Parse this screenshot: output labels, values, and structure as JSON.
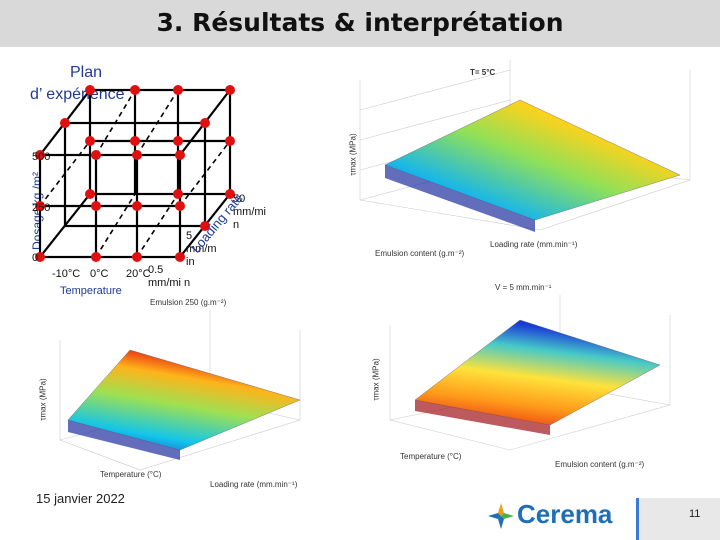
{
  "slide": {
    "title": "3. Résultats & interprétation",
    "date": "15 janvier 2022",
    "page_number": "11",
    "logo_text": "Cerema"
  },
  "design": {
    "title_line1": "Plan",
    "title_line2": "d’ expérience",
    "axis_dosage": "Dosage kg /m²",
    "dosage_ticks": [
      "500",
      "250",
      "0"
    ],
    "temp_ticks": [
      "-10°C",
      "0°C",
      "20°C"
    ],
    "temp_label": "Temperature",
    "loading_ticks": [
      "0.5 mm/mi n",
      "5 mm/m in",
      "50 mm/mi n"
    ],
    "loading_label": "Loading rate"
  },
  "plots": {
    "top_right": {
      "title": "T= 5°C",
      "x_label": "Emulsion content (g.m⁻²)",
      "y_label": "Loading rate (mm.min⁻¹)",
      "z_label": "τmax (MPa)"
    },
    "bottom_left": {
      "title": "Emulsion 250 (g.m⁻²)",
      "x_label": "Temperature (°C)",
      "y_label": "Loading rate (mm.min⁻¹)",
      "z_label": "τmax (MPa)"
    },
    "bottom_right": {
      "title": "V = 5 mm.min⁻¹",
      "x_label": "Temperature (°C)",
      "y_label": "Emulsion content (g.m⁻²)",
      "z_label": "τmax (MPa)"
    }
  },
  "colors": {
    "header_bg": "#d9d9d9",
    "point": "#e01010",
    "brand": "#1e6fb8"
  }
}
